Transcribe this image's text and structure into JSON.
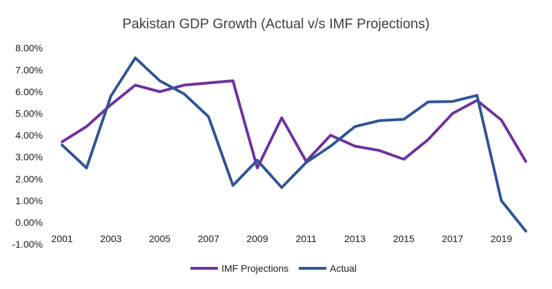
{
  "chart_data": {
    "type": "line",
    "title": "Pakistan GDP Growth (Actual v/s IMF Projections)",
    "xlabel": "",
    "ylabel": "",
    "x": [
      2001,
      2002,
      2003,
      2004,
      2005,
      2006,
      2007,
      2008,
      2009,
      2010,
      2011,
      2012,
      2013,
      2014,
      2015,
      2016,
      2017,
      2018,
      2019,
      2020
    ],
    "x_tick_labels": [
      "2001",
      "2003",
      "2005",
      "2007",
      "2009",
      "2011",
      "2013",
      "2015",
      "2017",
      "2019"
    ],
    "y_tick_labels": [
      "-1.00%",
      "0.00%",
      "1.00%",
      "2.00%",
      "3.00%",
      "4.00%",
      "5.00%",
      "6.00%",
      "7.00%",
      "8.00%"
    ],
    "ylim": [
      -1,
      8
    ],
    "grid": false,
    "legend_position": "bottom",
    "series": [
      {
        "name": "IMF Projections",
        "color": "#7030A0",
        "values": [
          3.7,
          4.4,
          5.4,
          6.3,
          6.0,
          6.3,
          6.4,
          6.5,
          2.5,
          4.8,
          2.8,
          4.0,
          3.5,
          3.3,
          2.9,
          3.8,
          5.0,
          5.6,
          4.7,
          2.8
        ]
      },
      {
        "name": "Actual",
        "color": "#2F5597",
        "values": [
          3.55,
          2.5,
          5.8,
          7.55,
          6.5,
          5.9,
          4.85,
          1.7,
          2.85,
          1.6,
          2.75,
          3.5,
          4.4,
          4.67,
          4.73,
          5.53,
          5.55,
          5.83,
          1.0,
          -0.4
        ]
      }
    ]
  }
}
